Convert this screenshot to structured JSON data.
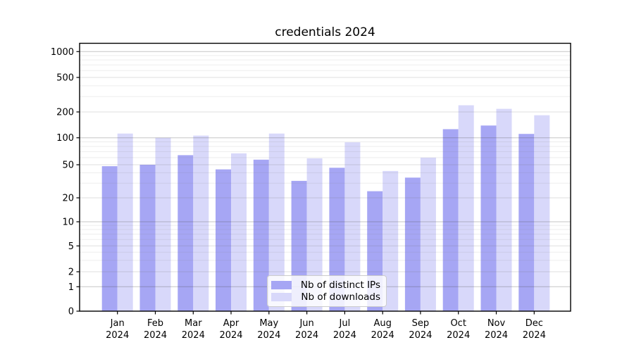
{
  "chart_data": {
    "type": "bar",
    "title": "credentials 2024",
    "xlabel": "",
    "ylabel": "",
    "categories": [
      "Jan",
      "Feb",
      "Mar",
      "Apr",
      "May",
      "Jun",
      "Jul",
      "Aug",
      "Sep",
      "Oct",
      "Nov",
      "Dec"
    ],
    "category_year_line": "2024",
    "series": [
      {
        "name": "Nb of distinct IPs",
        "color": "#a6a6f4",
        "values": [
          48,
          50,
          64,
          44,
          57,
          32,
          46,
          24,
          35,
          126,
          139,
          111
        ]
      },
      {
        "name": "Nb of downloads",
        "color": "#d8d8fa",
        "values": [
          112,
          100,
          106,
          67,
          112,
          59,
          89,
          42,
          60,
          239,
          217,
          183
        ]
      }
    ],
    "yscale": "asinh-log (log spacing above 1, linear segment 0 to 1)",
    "ylim": [
      0,
      1250
    ],
    "yticks": [
      0,
      1,
      2,
      5,
      10,
      20,
      50,
      100,
      200,
      500,
      1000
    ],
    "grid": true,
    "grid_major_color": "#c7c7c7",
    "grid_mid_color": "#dedede",
    "grid_minor_color": "#eeeeee",
    "spine_color": "#000000",
    "tick_label_color": "#000000",
    "legend_position": "inside-bottom-center"
  }
}
